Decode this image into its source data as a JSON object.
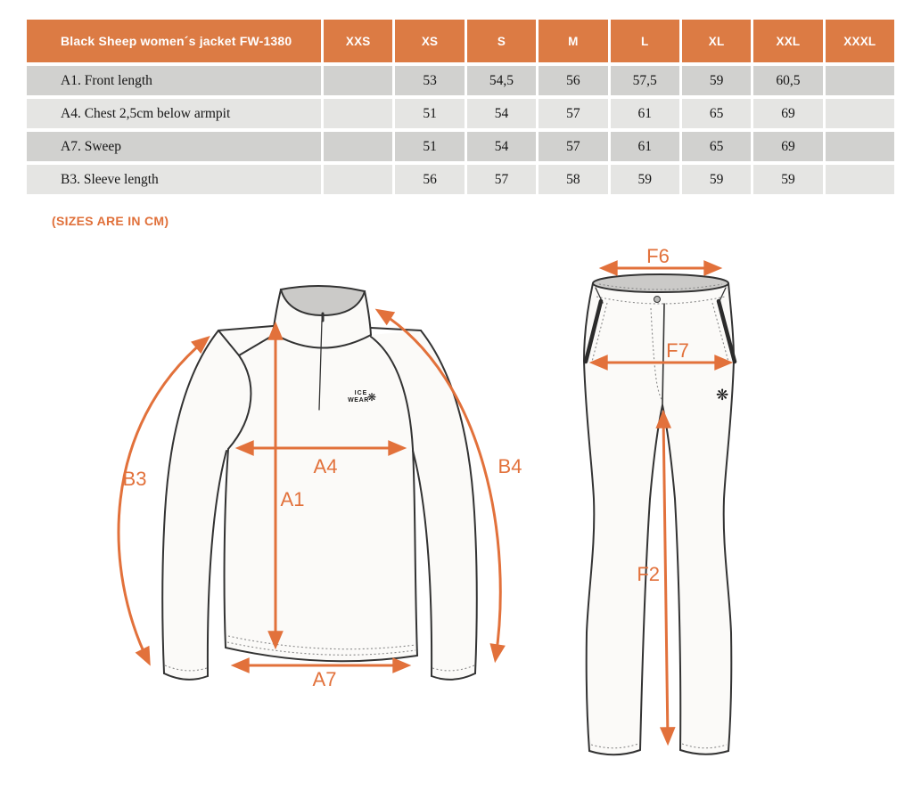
{
  "table": {
    "title": "Black Sheep women´s jacket FW-1380",
    "size_columns": [
      "XXS",
      "XS",
      "S",
      "M",
      "L",
      "XL",
      "XXL",
      "XXXL"
    ],
    "rows": [
      {
        "label": "A1. Front length",
        "values": [
          "",
          "53",
          "54,5",
          "56",
          "57,5",
          "59",
          "60,5",
          ""
        ]
      },
      {
        "label": "A4. Chest 2,5cm below armpit",
        "values": [
          "",
          "51",
          "54",
          "57",
          "61",
          "65",
          "69",
          ""
        ]
      },
      {
        "label": "A7. Sweep",
        "values": [
          "",
          "51",
          "54",
          "57",
          "61",
          "65",
          "69",
          ""
        ]
      },
      {
        "label": "B3. Sleeve length",
        "values": [
          "",
          "56",
          "57",
          "58",
          "59",
          "59",
          "59",
          ""
        ]
      }
    ]
  },
  "note": "(SIZES ARE IN CM)",
  "diagram": {
    "jacket": {
      "labels": {
        "b3": "B3",
        "a4": "A4",
        "a1": "A1",
        "b4": "B4",
        "a7": "A7"
      },
      "logo": {
        "line1": "ICE",
        "line2": "WEAR",
        "snowflake_icon": "❋"
      }
    },
    "pants": {
      "labels": {
        "f6": "F6",
        "f7": "F7",
        "f2": "F2"
      },
      "snowflake_icon": "❋"
    }
  },
  "colors": {
    "header_orange": "#DC7B44",
    "accent_orange": "#E2713B",
    "row_dark": "#D1D1CF",
    "row_light": "#E5E5E3",
    "collar_gray": "#CBCAC8",
    "outline_dark": "#333333"
  }
}
